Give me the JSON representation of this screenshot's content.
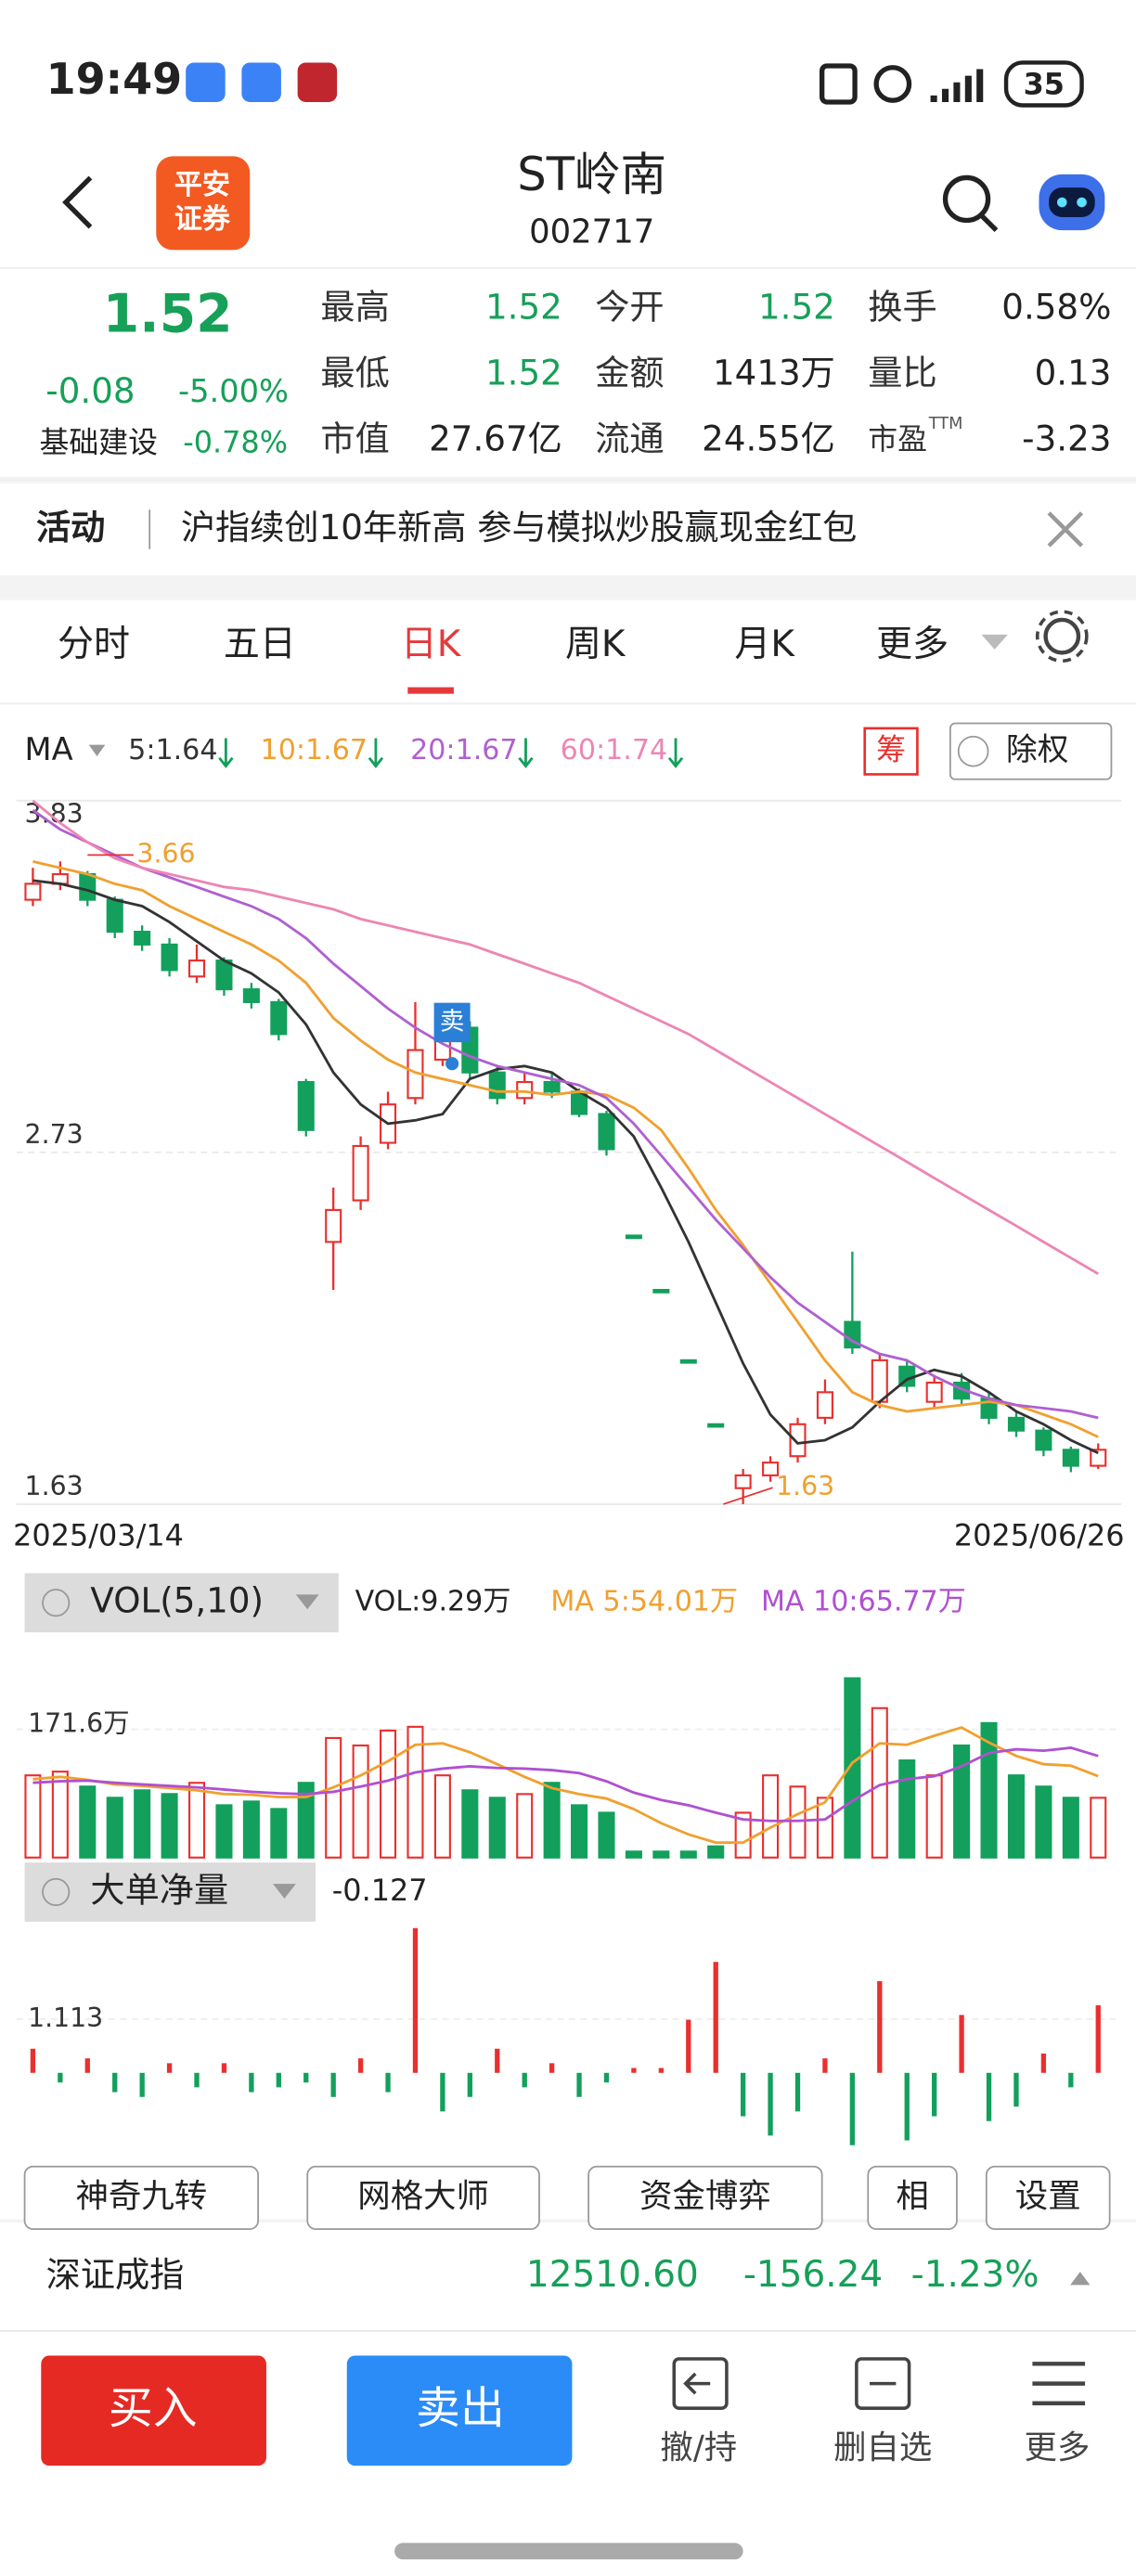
{
  "status_bar": {
    "time": "19:49",
    "battery": "35"
  },
  "header": {
    "logo": [
      "平安",
      "证券"
    ],
    "name": "ST岭南",
    "code": "002717"
  },
  "quote": {
    "price": "1.52",
    "change": "-0.08",
    "change_pct": "-5.00%",
    "sector": "基础建设",
    "sector_pct": "-0.78%",
    "color": "#16a058",
    "stats": [
      {
        "label": "最高",
        "value": "1.52",
        "color": "#16a058"
      },
      {
        "label": "今开",
        "value": "1.52",
        "color": "#16a058"
      },
      {
        "label": "换手",
        "value": "0.58%"
      },
      {
        "label": "最低",
        "value": "1.52",
        "color": "#16a058"
      },
      {
        "label": "金额",
        "value": "1413万"
      },
      {
        "label": "量比",
        "value": "0.13"
      },
      {
        "label": "市值",
        "value": "27.67亿"
      },
      {
        "label": "流通",
        "value": "24.55亿"
      },
      {
        "label": "市盈",
        "sup": "TTM",
        "value": "-3.23"
      }
    ]
  },
  "banner": {
    "tag": "活动",
    "text": "沪指续创10年新高 参与模拟炒股赢现金红包"
  },
  "tabs": {
    "items": [
      "分时",
      "五日",
      "日K",
      "周K",
      "月K",
      "更多"
    ],
    "active": 2
  },
  "kline": {
    "type": "candlestick",
    "ma_label": "MA",
    "chip": "筹",
    "rights": "除权",
    "ylim": [
      1.63,
      3.83
    ],
    "yticks": [
      3.83,
      2.73,
      1.63
    ],
    "start_date": "2025/03/14",
    "end_date": "2025/06/26",
    "high_mark": 3.66,
    "low_mark": 1.63,
    "signal": "卖",
    "up_color": "#e8302f",
    "down_color": "#12a05c",
    "candles": [
      [
        3.52,
        3.62,
        3.5,
        3.57
      ],
      [
        3.57,
        3.64,
        3.55,
        3.6
      ],
      [
        3.6,
        3.61,
        3.5,
        3.52
      ],
      [
        3.52,
        3.53,
        3.4,
        3.42
      ],
      [
        3.42,
        3.44,
        3.36,
        3.38
      ],
      [
        3.38,
        3.4,
        3.28,
        3.3
      ],
      [
        3.28,
        3.38,
        3.26,
        3.33
      ],
      [
        3.33,
        3.34,
        3.22,
        3.24
      ],
      [
        3.24,
        3.26,
        3.18,
        3.2
      ],
      [
        3.2,
        3.21,
        3.08,
        3.1
      ],
      [
        2.95,
        2.96,
        2.78,
        2.8
      ],
      [
        2.45,
        2.62,
        2.3,
        2.55
      ],
      [
        2.58,
        2.78,
        2.55,
        2.75
      ],
      [
        2.76,
        2.92,
        2.74,
        2.88
      ],
      [
        2.9,
        3.2,
        2.88,
        3.05
      ],
      [
        3.02,
        3.18,
        3.0,
        3.15
      ],
      [
        3.12,
        3.14,
        2.96,
        2.98
      ],
      [
        2.98,
        3.0,
        2.88,
        2.9
      ],
      [
        2.9,
        2.98,
        2.88,
        2.95
      ],
      [
        2.95,
        2.98,
        2.9,
        2.92
      ],
      [
        2.92,
        2.93,
        2.84,
        2.85
      ],
      [
        2.85,
        2.86,
        2.72,
        2.74
      ],
      [
        2.47,
        2.47,
        2.47,
        2.47
      ],
      [
        2.3,
        2.3,
        2.3,
        2.3
      ],
      [
        2.08,
        2.08,
        2.08,
        2.08
      ],
      [
        1.88,
        1.88,
        1.88,
        1.88
      ],
      [
        1.68,
        1.74,
        1.63,
        1.72
      ],
      [
        1.72,
        1.78,
        1.7,
        1.76
      ],
      [
        1.78,
        1.9,
        1.76,
        1.88
      ],
      [
        1.9,
        2.02,
        1.88,
        1.98
      ],
      [
        2.2,
        2.42,
        2.1,
        2.12
      ],
      [
        1.95,
        2.1,
        1.93,
        2.08
      ],
      [
        2.06,
        2.08,
        1.98,
        2.0
      ],
      [
        1.95,
        2.03,
        1.93,
        2.01
      ],
      [
        2.01,
        2.04,
        1.94,
        1.96
      ],
      [
        1.96,
        1.98,
        1.88,
        1.9
      ],
      [
        1.9,
        1.92,
        1.84,
        1.86
      ],
      [
        1.86,
        1.87,
        1.78,
        1.8
      ],
      [
        1.8,
        1.81,
        1.73,
        1.75
      ],
      [
        1.75,
        1.82,
        1.74,
        1.8
      ]
    ],
    "series": [
      {
        "name": "5:1.64",
        "color": "#333333",
        "values": [
          3.58,
          3.57,
          3.55,
          3.52,
          3.5,
          3.45,
          3.39,
          3.33,
          3.29,
          3.23,
          3.13,
          2.98,
          2.88,
          2.82,
          2.83,
          2.85,
          2.96,
          2.99,
          3.0,
          2.98,
          2.92,
          2.87,
          2.78,
          2.62,
          2.45,
          2.26,
          2.07,
          1.91,
          1.82,
          1.83,
          1.87,
          1.95,
          2.02,
          2.05,
          2.03,
          1.98,
          1.92,
          1.88,
          1.83,
          1.79
        ]
      },
      {
        "name": "10:1.67",
        "color": "#f0a030",
        "values": [
          3.64,
          3.62,
          3.6,
          3.57,
          3.55,
          3.5,
          3.46,
          3.42,
          3.38,
          3.33,
          3.26,
          3.15,
          3.08,
          3.02,
          2.98,
          2.96,
          2.94,
          2.92,
          2.92,
          2.91,
          2.92,
          2.91,
          2.87,
          2.8,
          2.68,
          2.55,
          2.44,
          2.32,
          2.2,
          2.08,
          1.98,
          1.94,
          1.92,
          1.93,
          1.94,
          1.95,
          1.94,
          1.91,
          1.88,
          1.84
        ]
      },
      {
        "name": "20:1.67",
        "color": "#b060d0",
        "values": [
          3.8,
          3.74,
          3.7,
          3.66,
          3.62,
          3.59,
          3.56,
          3.53,
          3.5,
          3.46,
          3.4,
          3.32,
          3.25,
          3.18,
          3.12,
          3.07,
          3.03,
          3.0,
          2.98,
          2.96,
          2.94,
          2.9,
          2.82,
          2.72,
          2.62,
          2.52,
          2.43,
          2.34,
          2.26,
          2.2,
          2.14,
          2.1,
          2.08,
          2.03,
          1.99,
          1.96,
          1.94,
          1.93,
          1.92,
          1.9
        ]
      },
      {
        "name": "60:1.74",
        "color": "#ec86b4",
        "values": [
          3.83,
          3.76,
          3.7,
          3.65,
          3.62,
          3.6,
          3.58,
          3.56,
          3.55,
          3.53,
          3.51,
          3.49,
          3.46,
          3.44,
          3.42,
          3.4,
          3.38,
          3.35,
          3.32,
          3.29,
          3.26,
          3.22,
          3.18,
          3.14,
          3.1,
          3.05,
          3.0,
          2.95,
          2.9,
          2.85,
          2.8,
          2.75,
          2.7,
          2.65,
          2.6,
          2.55,
          2.5,
          2.45,
          2.4,
          2.35
        ]
      }
    ]
  },
  "volume": {
    "type": "bar",
    "title": "VOL(5,10)",
    "legend": "VOL:9.29万",
    "ylim": [
      0,
      308
    ],
    "yticks": [
      {
        "value": 171.6,
        "label": "171.6万"
      }
    ],
    "values": [
      110,
      115,
      95,
      80,
      90,
      85,
      100,
      70,
      75,
      65,
      100,
      160,
      150,
      170,
      175,
      110,
      90,
      80,
      85,
      100,
      70,
      60,
      8,
      8,
      8,
      15,
      60,
      110,
      95,
      80,
      240,
      200,
      130,
      110,
      150,
      180,
      110,
      95,
      80,
      80
    ],
    "series": [
      {
        "name": "MA 5:54.01万",
        "color": "#f0a030",
        "values": [
          105,
          108,
          104,
          98,
          96,
          93,
          90,
          85,
          84,
          81,
          81,
          94,
          110,
          129,
          151,
          153,
          141,
          125,
          108,
          93,
          85,
          79,
          65,
          46,
          31,
          20,
          20,
          40,
          58,
          74,
          127,
          153,
          151,
          163,
          174,
          154,
          136,
          125,
          123,
          109
        ]
      },
      {
        "name": "MA 10:65.77万",
        "color": "#b050d0",
        "values": [
          100,
          102,
          103,
          100,
          98,
          96,
          94,
          91,
          88,
          86,
          85,
          88,
          95,
          103,
          114,
          119,
          122,
          120,
          119,
          117,
          113,
          102,
          87,
          77,
          70,
          60,
          51,
          49,
          49,
          51,
          76,
          97,
          105,
          109,
          122,
          140,
          145,
          143,
          147,
          136
        ]
      }
    ]
  },
  "dadan": {
    "type": "bar",
    "title": "大单净量",
    "current": -0.127,
    "ylim": [
      -1.5,
      3.1
    ],
    "yticks": [
      1.113
    ],
    "values": [
      0.5,
      -0.2,
      0.3,
      -0.4,
      -0.5,
      0.2,
      -0.3,
      0.2,
      -0.4,
      -0.3,
      -0.2,
      -0.5,
      0.3,
      -0.4,
      3.0,
      -0.8,
      -0.5,
      0.5,
      -0.3,
      0.2,
      -0.5,
      -0.2,
      0.1,
      0.1,
      1.1,
      2.3,
      -0.9,
      -1.3,
      -0.8,
      0.3,
      -1.5,
      1.9,
      -1.4,
      -0.9,
      1.2,
      -1.0,
      -0.7,
      0.4,
      -0.3,
      1.4
    ]
  },
  "tools": [
    "神奇九转",
    "网格大师",
    "资金博弈",
    "相",
    "设置"
  ],
  "index": {
    "name": "深证成指",
    "value": "12510.60",
    "change": "-156.24",
    "change_pct": "-1.23%"
  },
  "actions": {
    "buy": "买入",
    "sell": "卖出",
    "items": [
      "撤/持",
      "删自选",
      "更多"
    ]
  }
}
